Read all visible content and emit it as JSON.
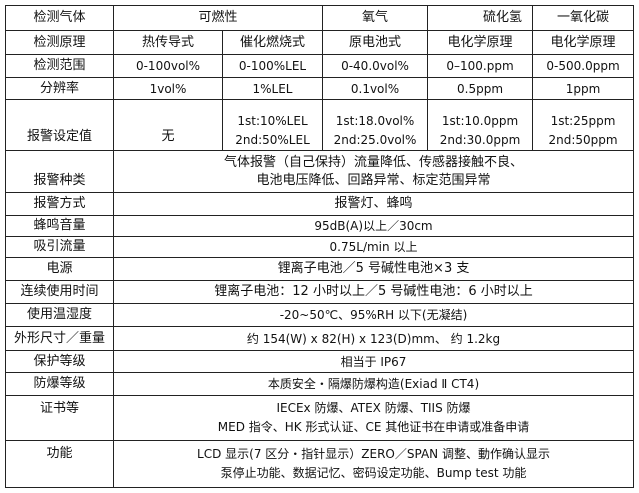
{
  "header": {
    "label": "检测气体",
    "gases": [
      "可燃性",
      "氧气",
      "硫化氢",
      "一氧化碳"
    ]
  },
  "principle": {
    "label": "检测原理",
    "values": [
      "热传导式",
      "催化燃烧式",
      "原电池式",
      "电化学原理",
      "电化学原理"
    ]
  },
  "range": {
    "label": "检测范围",
    "values": [
      "0-100vol%",
      "0-100%LEL",
      "0-40.0vol%",
      "0–100.ppm",
      "0-500.0ppm"
    ]
  },
  "resolution": {
    "label": "分辨率",
    "values": [
      "1vol%",
      "1%LEL",
      "0.1vol%",
      "0.5ppm",
      "1ppm"
    ]
  },
  "alarm_setting": {
    "label": "报警设定值",
    "none": "无",
    "values": [
      [
        "1st:10%LEL",
        "2nd:50%LEL"
      ],
      [
        "1st:18.0vol%",
        "2nd:25.0vol%"
      ],
      [
        "1st:10.0ppm",
        "2nd:30.0ppm"
      ],
      [
        "1st:25ppm",
        "2nd:50ppm"
      ]
    ]
  },
  "specs": [
    {
      "label": "报警种类",
      "lines": [
        "气体报警（自己保持）流量降低、传感器接触不良、",
        "电池电压降低、回路异常、标定范围异常"
      ]
    },
    {
      "label": "报警方式",
      "lines": [
        "报警灯、蜂鸣"
      ]
    },
    {
      "label": "蜂鸣音量",
      "lines": [
        "95dB(A)以上／30cm"
      ]
    },
    {
      "label": "吸引流量",
      "lines": [
        "0.75L/min 以上"
      ]
    },
    {
      "label": "电源",
      "lines": [
        "锂离子电池／5 号碱性电池×3 支"
      ]
    },
    {
      "label": "连续使用时间",
      "lines": [
        "锂离子电池：12 小时以上／5 号碱性电池：6 小时以上"
      ]
    },
    {
      "label": "使用温湿度",
      "lines": [
        "-20~50℃、95%RH 以下(无凝结)"
      ]
    },
    {
      "label": "外形尺寸／重量",
      "lines": [
        "约  154(W) x 82(H) x 123(D)mm、   约  1.2kg"
      ]
    },
    {
      "label": "保护等级",
      "lines": [
        "相当于   IP67"
      ]
    },
    {
      "label": "防爆等级",
      "lines": [
        "本质安全・隔爆防爆构造(Exiad Ⅱ CT4)"
      ]
    },
    {
      "label": "证书等",
      "lines": [
        "IECEx 防爆、ATEX 防爆、TIIS 防爆",
        "MED 指令、HK 形式认证、CE 其他证书在申请或准备申请"
      ]
    },
    {
      "label": "功能",
      "lines": [
        "LCD 显示(7 区分・指针显示）ZERO／SPAN 调整、動作确认显示",
        "泵停止功能、数据记忆、密码设定功能、Bump test 功能"
      ]
    }
  ]
}
